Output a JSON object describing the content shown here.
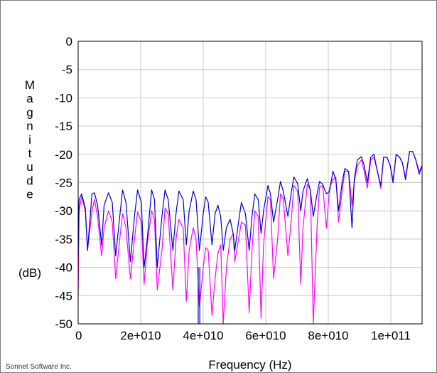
{
  "credit": "Sonnet Software Inc.",
  "chart_data": {
    "type": "line",
    "xlabel": "Frequency (Hz)",
    "ylabel_letters": [
      "M",
      "a",
      "g",
      "n",
      "i",
      "t",
      "u",
      "d",
      "e"
    ],
    "ylabel_unit": "(dB)",
    "xlim": [
      0,
      110000000000
    ],
    "ylim": [
      -50,
      0
    ],
    "x_ticks": [
      {
        "value": 0,
        "label": "0"
      },
      {
        "value": 20000000000,
        "label": "2e+010"
      },
      {
        "value": 40000000000,
        "label": "4e+010"
      },
      {
        "value": 60000000000,
        "label": "6e+010"
      },
      {
        "value": 80000000000,
        "label": "8e+010"
      },
      {
        "value": 100000000000,
        "label": "1e+011"
      }
    ],
    "y_ticks": [
      {
        "value": 0,
        "label": "0"
      },
      {
        "value": -5,
        "label": "-5"
      },
      {
        "value": -10,
        "label": "-10"
      },
      {
        "value": -15,
        "label": "-15"
      },
      {
        "value": -20,
        "label": "-20"
      },
      {
        "value": -25,
        "label": "-25"
      },
      {
        "value": -30,
        "label": "-30"
      },
      {
        "value": -35,
        "label": "-35"
      },
      {
        "value": -40,
        "label": "-40"
      },
      {
        "value": -45,
        "label": "-45"
      },
      {
        "value": -50,
        "label": "-50"
      }
    ],
    "grid": true,
    "series": [
      {
        "color": "#0000cc",
        "x": [
          0,
          300000000,
          1100000000,
          2300000000,
          3000000000,
          4400000000,
          5200000000,
          6200000000,
          7500000000,
          8300000000,
          9700000000,
          10900000000,
          12000000000,
          13300000000,
          14200000000,
          15300000000,
          16700000000,
          18000000000,
          19000000000,
          20200000000,
          21100000000,
          22100000000,
          23500000000,
          24400000000,
          25300000000,
          26800000000,
          27800000000,
          28800000000,
          30300000000,
          31300000000,
          32200000000,
          33600000000,
          34600000000,
          35500000000,
          36800000000,
          37700000000,
          38800000000,
          40000000000,
          40800000000,
          41600000000,
          42800000000,
          43800000000,
          44700000000,
          45600000000,
          46400000000,
          47400000000,
          48600000000,
          49600000000,
          50100000000,
          51300000000,
          52200000000,
          53500000000,
          54700000000,
          55600000000,
          56500000000,
          57600000000,
          58500000000,
          59300000000,
          60700000000,
          61500000000,
          62500000000,
          63800000000,
          64700000000,
          65600000000,
          67100000000,
          68100000000,
          69000000000,
          70200000000,
          71200000000,
          71900000000,
          73300000000,
          74300000000,
          75200000000,
          76400000000,
          77200000000,
          78200000000,
          79400000000,
          80400000000,
          81500000000,
          82400000000,
          83300000000,
          84400000000,
          85300000000,
          86500000000,
          87600000000,
          88300000000,
          89300000000,
          90600000000,
          91500000000,
          92500000000,
          93600000000,
          94600000000,
          95500000000,
          96800000000,
          97700000000,
          98800000000,
          99800000000,
          100700000000,
          101700000000,
          102800000000,
          103700000000,
          104700000000,
          106000000000,
          107000000000,
          108000000000,
          109100000000,
          110000000000
        ],
        "y": [
          -38,
          -28,
          -27,
          -29.5,
          -37,
          -27,
          -26.8,
          -29,
          -36,
          -29,
          -26.8,
          -28.5,
          -38,
          -31,
          -26.3,
          -28.5,
          -39,
          -31,
          -26.3,
          -28.5,
          -40,
          -35,
          -26.3,
          -28,
          -40,
          -31,
          -26.3,
          -28,
          -37,
          -30.5,
          -26.5,
          -28,
          -36,
          -30,
          -26.5,
          -28,
          -37,
          -30.5,
          -27.5,
          -28.5,
          -36,
          -30.5,
          -29,
          -31,
          -37,
          -33,
          -31.5,
          -34,
          -37,
          -32,
          -28.5,
          -30.5,
          -37,
          -31,
          -27,
          -28,
          -34,
          -30,
          -25.5,
          -27,
          -32,
          -28,
          -24.8,
          -26.5,
          -31,
          -27,
          -24,
          -25.2,
          -30,
          -26.5,
          -24.3,
          -26.5,
          -31,
          -27,
          -24.8,
          -25.3,
          -27,
          -26.5,
          -23,
          -24.5,
          -30,
          -25,
          -22.5,
          -23,
          -33,
          -24.5,
          -21,
          -20.4,
          -22,
          -25,
          -20.5,
          -20,
          -22.5,
          -25.5,
          -20.5,
          -20.5,
          -22,
          -25,
          -20,
          -20.5,
          -21.5,
          -24.5,
          -19.5,
          -19.5,
          -21,
          -23.5,
          -22
        ]
      },
      {
        "color": "#ff00ff",
        "x": [
          0,
          300000000,
          1100000000,
          2300000000,
          3000000000,
          4400000000,
          5200000000,
          6200000000,
          7500000000,
          8300000000,
          9700000000,
          10900000000,
          12000000000,
          13300000000,
          14200000000,
          15300000000,
          16700000000,
          18000000000,
          19000000000,
          20200000000,
          21100000000,
          22100000000,
          23500000000,
          24400000000,
          25300000000,
          26800000000,
          27800000000,
          28800000000,
          30300000000,
          31300000000,
          32200000000,
          33600000000,
          34600000000,
          35500000000,
          36800000000,
          37700000000,
          38800000000,
          40000000000,
          40800000000,
          41600000000,
          42800000000,
          43800000000,
          44700000000,
          45600000000,
          46400000000,
          47400000000,
          48600000000,
          49600000000,
          50100000000,
          51300000000,
          52200000000,
          53500000000,
          54700000000,
          55600000000,
          56500000000,
          57600000000,
          58500000000,
          59300000000,
          60700000000,
          61500000000,
          62500000000,
          63800000000,
          64700000000,
          65600000000,
          67100000000,
          68100000000,
          69000000000,
          70200000000,
          71200000000,
          71900000000,
          73300000000,
          74300000000,
          75200000000,
          76400000000,
          77200000000,
          78200000000,
          79400000000,
          80400000000,
          81500000000,
          82400000000,
          83300000000,
          84400000000,
          85300000000,
          86500000000,
          87600000000,
          88300000000,
          89300000000,
          90600000000,
          91500000000,
          92500000000,
          93600000000,
          94600000000,
          95500000000,
          96800000000,
          97700000000,
          98800000000,
          99800000000,
          100700000000,
          101700000000,
          102800000000,
          103700000000,
          104700000000,
          106000000000,
          107000000000,
          108000000000,
          109100000000,
          110000000000
        ],
        "y": [
          -45,
          -30,
          -27.5,
          -30,
          -37,
          -30,
          -28,
          -31,
          -38,
          -33,
          -30,
          -32,
          -42,
          -35,
          -30.5,
          -33,
          -42,
          -35,
          -30.2,
          -32,
          -43,
          -36,
          -30,
          -31.5,
          -44,
          -37,
          -29.5,
          -30.5,
          -44,
          -35,
          -31.5,
          -33,
          -46,
          -37,
          -33,
          -35,
          -47,
          -40,
          -36.5,
          -37,
          -48.5,
          -42,
          -37.5,
          -36,
          -50,
          -40,
          -35,
          -34,
          -39,
          -35,
          -32,
          -32.5,
          -48,
          -37,
          -30,
          -31,
          -49,
          -36,
          -27.5,
          -28,
          -42,
          -35,
          -27,
          -27.8,
          -38,
          -32,
          -25.5,
          -26.5,
          -43,
          -33,
          -25.3,
          -26.3,
          -50,
          -33,
          -25.8,
          -25.5,
          -33,
          -26,
          -24.5,
          -24,
          -32,
          -26.5,
          -23,
          -23,
          -29,
          -25,
          -22,
          -21,
          -23,
          -26,
          -21,
          -20.5,
          -22.5,
          -26,
          -20.5,
          -20.5,
          -22,
          -24.5,
          -20,
          -20.5,
          -21.5,
          -24,
          -19.5,
          -19.5,
          -21,
          -23,
          -22
        ]
      }
    ],
    "spikes": [
      {
        "color": "#0000cc",
        "x": 38400000000,
        "to": -50
      },
      {
        "color": "#0000cc",
        "x": 38900000000,
        "to": -50
      }
    ]
  }
}
